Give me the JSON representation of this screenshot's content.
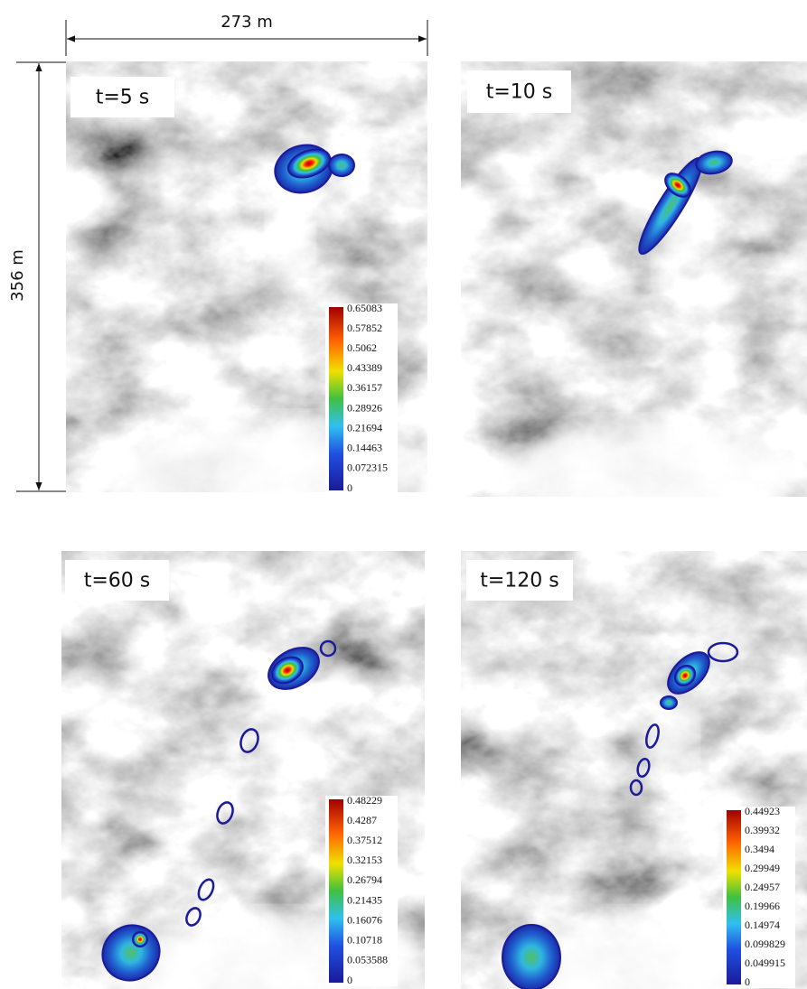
{
  "dimensions": {
    "width": "273 m",
    "height": "356 m"
  },
  "panels": [
    {
      "time": "t=5 s",
      "colorbar": [
        "0.65083",
        "0.57852",
        "0.5062",
        "0.43389",
        "0.36157",
        "0.28926",
        "0.21694",
        "0.14463",
        "0.072315",
        "0"
      ]
    },
    {
      "time": "t=10 s"
    },
    {
      "time": "t=60 s",
      "colorbar": [
        "0.48229",
        "0.4287",
        "0.37512",
        "0.32153",
        "0.26794",
        "0.21435",
        "0.16076",
        "0.10718",
        "0.053588",
        "0"
      ]
    },
    {
      "time": "t=120 s",
      "colorbar": [
        "0.44923",
        "0.39932",
        "0.3494",
        "0.29949",
        "0.24957",
        "0.19966",
        "0.14974",
        "0.099829",
        "0.049915",
        "0"
      ]
    }
  ]
}
